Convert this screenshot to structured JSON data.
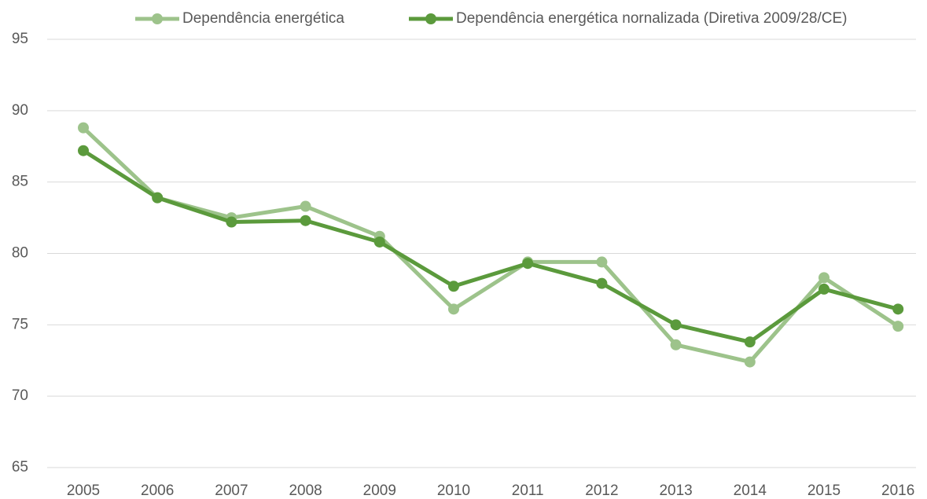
{
  "chart_data": {
    "type": "line",
    "categories": [
      "2005",
      "2006",
      "2007",
      "2008",
      "2009",
      "2010",
      "2011",
      "2012",
      "2013",
      "2014",
      "2015",
      "2016"
    ],
    "series": [
      {
        "name": "Dependência energética",
        "color": "#9dc38b",
        "values": [
          88.8,
          83.9,
          82.5,
          83.3,
          81.2,
          76.1,
          79.4,
          79.4,
          73.6,
          72.4,
          78.3,
          74.9
        ]
      },
      {
        "name": "Dependência energética nornalizada (Diretiva 2009/28/CE)",
        "color": "#5b9a3c",
        "values": [
          87.2,
          83.9,
          82.2,
          82.3,
          80.8,
          77.7,
          79.3,
          77.9,
          75.0,
          73.8,
          77.5,
          76.1
        ]
      }
    ],
    "ylim": [
      65,
      95
    ],
    "yticks": [
      65,
      70,
      75,
      80,
      85,
      90,
      95
    ],
    "grid": true,
    "legend": "top"
  }
}
